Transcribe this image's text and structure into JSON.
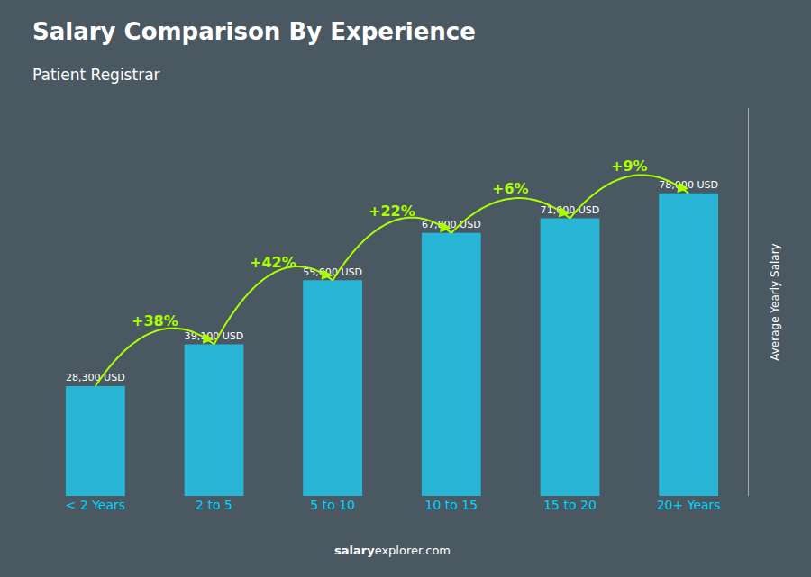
{
  "chart_data": {
    "type": "bar",
    "title": "Salary Comparison By Experience",
    "subtitle": "Patient Registrar",
    "categories": [
      "< 2 Years",
      "2 to 5",
      "5 to 10",
      "10 to 15",
      "15 to 20",
      "20+ Years"
    ],
    "values": [
      28300,
      39100,
      55600,
      67800,
      71600,
      78000
    ],
    "value_labels": [
      "28,300 USD",
      "39,100 USD",
      "55,600 USD",
      "67,800 USD",
      "71,600 USD",
      "78,000 USD"
    ],
    "data_labels": true,
    "color": "#29b6d6",
    "ylabel": "Average Yearly Salary",
    "ylim": [
      0,
      100000
    ],
    "tick_labels": "x",
    "grid": false,
    "annotations": [
      {
        "text": "+38%",
        "color": "#aaff00"
      },
      {
        "text": "+42%",
        "color": "#aaff00"
      },
      {
        "text": "+22%",
        "color": "#aaff00"
      },
      {
        "text": "+6%",
        "color": "#aaff00"
      },
      {
        "text": "+9%",
        "color": "#aaff00"
      }
    ],
    "footer": [
      "salary",
      "explorer.com"
    ]
  }
}
